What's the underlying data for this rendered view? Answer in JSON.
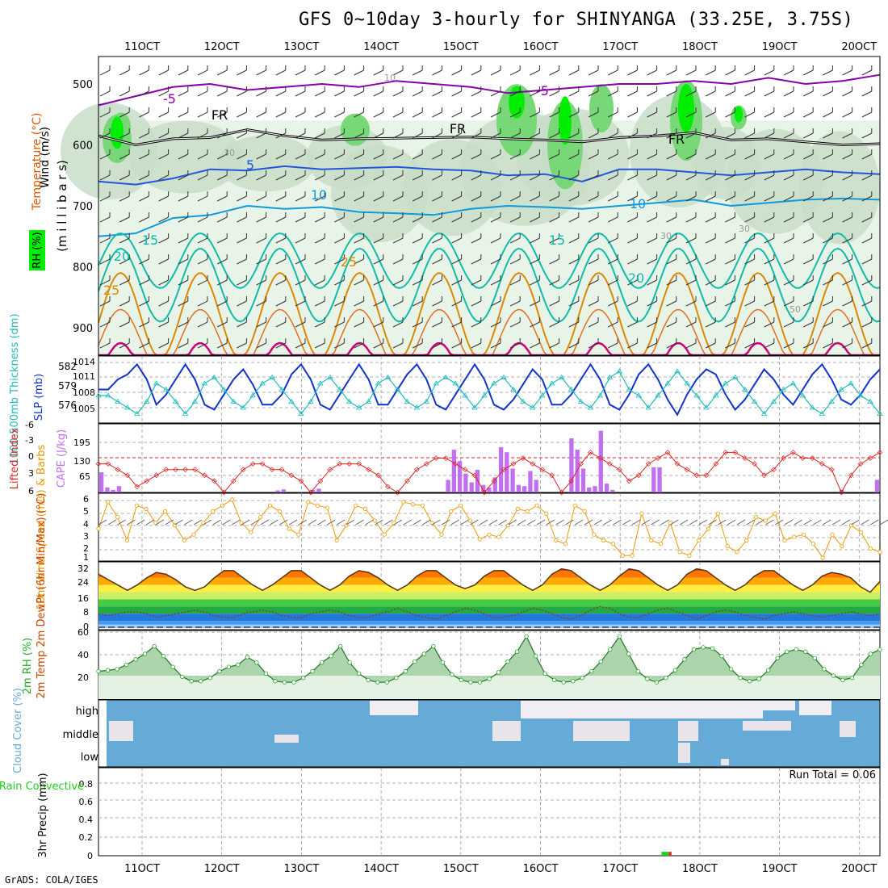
{
  "title": "GFS 0~10day 3-hourly for SHINYANGA (33.25E, 3.75S)",
  "footer": "GrADS: COLA/IGES",
  "colors": {
    "rh_light": "#e8f4e8",
    "rh_mid": "#c8ddc8",
    "rh_dark": "#a8c4a8",
    "rh_green": "#78d878",
    "rh_bright": "#00ee00",
    "temp_purple": "#8800aa",
    "temp_blue": "#2255dd",
    "temp_cyan": "#1199dd",
    "temp_teal": "#11bbaa",
    "temp_orange": "#dd8800",
    "temp_magenta": "#cc0077",
    "slp": "#1133cc",
    "thickness": "#22bbbb",
    "lifted": "#dd2222",
    "cape": "#c070f0",
    "wind_speed": "#ee9900",
    "cloud": "#66aad8",
    "rh2m": "#22aa22",
    "precip_total": "#22cc22",
    "precip_conv": "#ee2222"
  },
  "chart_data": [
    {
      "type": "contour",
      "name": "upper-air cross section",
      "legend": [
        "Wind (m/s)",
        "Temperature (°C)",
        "RH (%)"
      ],
      "ylabel": "(m i l l i b a r s)",
      "y_ticks": [
        "500",
        "600",
        "700",
        "800",
        "900"
      ],
      "x_ticks": [
        "11OCT",
        "12OCT",
        "13OCT",
        "14OCT",
        "15OCT",
        "16OCT",
        "17OCT",
        "18OCT",
        "19OCT",
        "20OCT"
      ],
      "contour_labels": [
        "-5",
        "-5",
        "5",
        "10",
        "10",
        "15",
        "15",
        "-20",
        "20",
        "25",
        "25",
        "FR",
        "FR",
        "FR",
        "30",
        "30",
        "30",
        "10",
        "50"
      ],
      "freezing_level_mb": [
        585,
        600,
        590,
        588,
        575,
        585,
        592,
        590,
        589,
        588,
        587,
        590,
        592,
        595,
        588,
        585,
        580,
        592,
        590,
        595,
        600,
        598
      ],
      "t5_level_mb": [
        660,
        665,
        655,
        640,
        642,
        635,
        640,
        638,
        636,
        640,
        642,
        650,
        648,
        660,
        640,
        640,
        645,
        650,
        645,
        640,
        645,
        648
      ],
      "t10_level_mb": [
        750,
        745,
        720,
        715,
        700,
        705,
        702,
        710,
        712,
        715,
        705,
        700,
        702,
        705,
        700,
        695,
        690,
        700,
        695,
        690,
        688,
        690
      ],
      "t_minus5_level_mb": [
        535,
        520,
        505,
        500,
        510,
        505,
        500,
        505,
        495,
        500,
        505,
        515,
        510,
        505,
        500,
        500,
        495,
        500,
        490,
        500,
        495,
        485
      ]
    },
    {
      "type": "line",
      "name": "sea level pressure and thickness",
      "ylabel_left": "1000-500mb Thickness (dm)",
      "ylabel_right": "SLP (mb)",
      "left_ticks": [
        "582",
        "579",
        "576"
      ],
      "right_ticks": [
        "1014",
        "1011",
        "1008",
        "1005"
      ],
      "series": [
        {
          "name": "SLP (mb)",
          "ylim": [
            1003,
            1015
          ],
          "values": [
            1009,
            1009,
            1011,
            1012,
            1014,
            1011,
            1006,
            1008,
            1011,
            1014,
            1011,
            1006,
            1005,
            1008,
            1011,
            1013,
            1010,
            1006,
            1006,
            1008,
            1012,
            1014,
            1011,
            1006,
            1005,
            1008,
            1011,
            1014,
            1011,
            1006,
            1006,
            1009,
            1012,
            1014,
            1011,
            1006,
            1005,
            1008,
            1011,
            1014,
            1011,
            1006,
            1005,
            1007,
            1010,
            1013,
            1011,
            1006,
            1006,
            1008,
            1011,
            1014,
            1011,
            1006,
            1005,
            1008,
            1012,
            1014,
            1011,
            1007,
            1004,
            1008,
            1011,
            1013,
            1012,
            1008,
            1005,
            1007,
            1010,
            1013,
            1011,
            1008,
            1006,
            1009,
            1012,
            1014,
            1011,
            1007,
            1006,
            1008,
            1011,
            1013
          ]
        },
        {
          "name": "Thickness (dm)",
          "ylim": [
            574,
            584
          ],
          "values": [
            578,
            578,
            577,
            576,
            575,
            577,
            580,
            579,
            577,
            575,
            577,
            580,
            581,
            579,
            577,
            576,
            578,
            580,
            581,
            579,
            577,
            575,
            577,
            580,
            581,
            579,
            577,
            576,
            577,
            580,
            581,
            579,
            577,
            576,
            577,
            580,
            581,
            580,
            578,
            576,
            578,
            580,
            581,
            579,
            577,
            576,
            578,
            580,
            581,
            579,
            577,
            576,
            578,
            581,
            582,
            579,
            578,
            576,
            578,
            580,
            582,
            580,
            578,
            576,
            578,
            580,
            581,
            579,
            577,
            575,
            577,
            579,
            580,
            578,
            576,
            575,
            577,
            579,
            580,
            578,
            577,
            575
          ]
        }
      ]
    },
    {
      "type": "bar",
      "name": "lifted index and CAPE",
      "ylabel_left": "Lifted Index",
      "ylabel_right": "CAPE (J/kg)",
      "left_ticks": [
        "-6",
        "-3",
        "0",
        "3",
        "6"
      ],
      "right_ticks": [
        "195",
        "130",
        "65"
      ],
      "series": [
        {
          "name": "Lifted Index",
          "ylim": [
            -6,
            6
          ],
          "values": [
            1,
            1,
            2,
            3,
            5,
            4,
            3,
            2,
            2,
            2,
            2,
            3,
            4,
            6,
            4,
            2,
            1,
            1,
            2,
            2,
            3,
            4,
            6,
            4,
            2,
            1,
            1,
            1,
            2,
            3,
            5,
            6,
            4,
            2,
            1,
            0,
            0,
            1,
            2,
            3,
            6,
            4,
            2,
            1,
            0,
            1,
            2,
            3,
            6,
            4,
            1,
            -1,
            0,
            1,
            2,
            4,
            3,
            1,
            0,
            -1,
            1,
            2,
            3,
            3,
            1,
            -1,
            -1,
            0,
            1,
            3,
            2,
            0,
            -1,
            0,
            0,
            1,
            2,
            6,
            3,
            1,
            0,
            -1
          ]
        },
        {
          "name": "CAPE (J/kg)",
          "ylim": [
            0,
            260
          ],
          "values": [
            80,
            20,
            10,
            25,
            0,
            0,
            0,
            0,
            0,
            0,
            0,
            0,
            0,
            0,
            0,
            0,
            0,
            0,
            0,
            0,
            0,
            0,
            0,
            0,
            0,
            0,
            0,
            0,
            0,
            0,
            8,
            12,
            0,
            0,
            0,
            0,
            10,
            15,
            0,
            0,
            0,
            0,
            0,
            0,
            0,
            0,
            0,
            0,
            0,
            0,
            0,
            0,
            0,
            0,
            0,
            0,
            0,
            0,
            0,
            50,
            170,
            125,
            75,
            40,
            90,
            30,
            20,
            60,
            180,
            160,
            95,
            30,
            25,
            85,
            50,
            0,
            0,
            0,
            0,
            0,
            215,
            170,
            95,
            20,
            25,
            245,
            35,
            10,
            0,
            0,
            0,
            0,
            0,
            0,
            100,
            100,
            0,
            0,
            0,
            0,
            0,
            0,
            0,
            0,
            0,
            0,
            0,
            0,
            0,
            0,
            0,
            0,
            0,
            0,
            0,
            0,
            0,
            0,
            0,
            0,
            0,
            0,
            0,
            0,
            0,
            0,
            10,
            0,
            0,
            0,
            0,
            0,
            50
          ]
        }
      ]
    },
    {
      "type": "line",
      "name": "10m wind",
      "ylabel": "10m Wind Speed (m/s) & Barbs",
      "y_ticks": [
        "6",
        "5",
        "4",
        "3",
        "2",
        "1"
      ],
      "ylim": [
        1,
        6
      ],
      "values": [
        3.5,
        5.8,
        4.5,
        2.5,
        5.5,
        5.2,
        4.0,
        5.0,
        3.8,
        2.5,
        3.0,
        4.0,
        5.0,
        5.5,
        6.0,
        4.0,
        3.2,
        4.5,
        5.5,
        5.0,
        3.5,
        3.0,
        5.8,
        5.5,
        5.3,
        2.5,
        3.8,
        5.5,
        5.2,
        4.2,
        3.0,
        4.0,
        5.8,
        5.6,
        5.5,
        4.0,
        3.0,
        5.0,
        5.5,
        4.2,
        2.6,
        3.0,
        2.8,
        3.8,
        5.2,
        5.0,
        5.5,
        4.8,
        2.5,
        2.2,
        5.5,
        5.0,
        3.0,
        2.5,
        2.2,
        1.2,
        1.2,
        4.8,
        2.5,
        2.2,
        4.0,
        1.5,
        1.2,
        2.5,
        3.5,
        4.8,
        2.0,
        1.5,
        2.5,
        4.5,
        4.2,
        4.8,
        2.5,
        2.8,
        3.0,
        2.2,
        1.0,
        3.0,
        2.0,
        3.8,
        3.2,
        1.8,
        1.5
      ]
    },
    {
      "type": "area",
      "name": "2m temperature and dewpoint",
      "ylabel": "2m Temp 2m DewPt (6hr Min/Max) (°C)",
      "y_ticks": [
        "32",
        "24",
        "16",
        "8",
        "0"
      ],
      "ylim": [
        0,
        36
      ],
      "series": [
        {
          "name": "2m Temp",
          "values": [
            30,
            27,
            24,
            21,
            24,
            28,
            31,
            30,
            27,
            23,
            21,
            23,
            28,
            32,
            32,
            28,
            24,
            21,
            24,
            28,
            32,
            32,
            28,
            24,
            21,
            24,
            29,
            32,
            31,
            28,
            24,
            21,
            24,
            29,
            32,
            32,
            28,
            24,
            22,
            24,
            29,
            32,
            32,
            28,
            24,
            21,
            24,
            30,
            33,
            32,
            28,
            24,
            21,
            24,
            29,
            33,
            32,
            28,
            24,
            21,
            24,
            30,
            33,
            32,
            28,
            24,
            21,
            24,
            29,
            32,
            32,
            28,
            24,
            21,
            24,
            29,
            31,
            30,
            28,
            23,
            20,
            26
          ]
        },
        {
          "name": "2m DewPt",
          "values": [
            8,
            7,
            8,
            9,
            9,
            8,
            6,
            7,
            8,
            9,
            10,
            9,
            7,
            6,
            6,
            8,
            9,
            10,
            9,
            7,
            6,
            6,
            8,
            9,
            10,
            9,
            7,
            6,
            6,
            8,
            9,
            11,
            9,
            7,
            6,
            5,
            7,
            9,
            11,
            10,
            8,
            6,
            6,
            7,
            9,
            11,
            10,
            8,
            6,
            5,
            7,
            10,
            12,
            11,
            8,
            6,
            6,
            8,
            10,
            11,
            9,
            7,
            5,
            7,
            9,
            10,
            9,
            7,
            6,
            5,
            7,
            8,
            9,
            8,
            7,
            6,
            7,
            8,
            9,
            8,
            7,
            8
          ]
        }
      ]
    },
    {
      "type": "area",
      "name": "2m relative humidity",
      "ylabel": "2m RH (%)",
      "y_ticks": [
        "60",
        "40",
        "20"
      ],
      "ylim": [
        0,
        60
      ],
      "values": [
        24,
        25,
        26,
        30,
        35,
        40,
        47,
        38,
        28,
        19,
        15,
        15,
        18,
        24,
        28,
        30,
        37,
        32,
        22,
        15,
        14,
        14,
        18,
        24,
        32,
        38,
        47,
        32,
        22,
        16,
        14,
        14,
        18,
        24,
        33,
        40,
        47,
        32,
        21,
        16,
        14,
        14,
        17,
        23,
        33,
        42,
        56,
        38,
        22,
        16,
        14,
        15,
        18,
        24,
        33,
        44,
        56,
        40,
        24,
        17,
        14,
        18,
        25,
        35,
        44,
        46,
        45,
        38,
        26,
        18,
        15,
        17,
        25,
        36,
        42,
        44,
        42,
        36,
        26,
        20,
        16,
        18,
        30,
        40,
        44
      ]
    },
    {
      "type": "heatmap",
      "name": "cloud cover",
      "ylabel": "Cloud Cover (%)",
      "row_labels": [
        "high",
        "middle",
        "low"
      ]
    },
    {
      "type": "bar",
      "name": "3hr precipitation",
      "ylabel_left": "Total / Rain Convective",
      "ylabel_right": "3hr Precip (mm)",
      "y_ticks": [
        "0.8",
        "0.6",
        "0.4",
        "0.2",
        "0"
      ],
      "ylim": [
        0,
        0.9
      ],
      "annotation": "Run Total = 0.06",
      "bars": [
        {
          "series": "Total",
          "time_index": 59.5,
          "value": 0.04
        },
        {
          "series": "Convective",
          "time_index": 60.3,
          "value": 0.04
        }
      ]
    }
  ]
}
